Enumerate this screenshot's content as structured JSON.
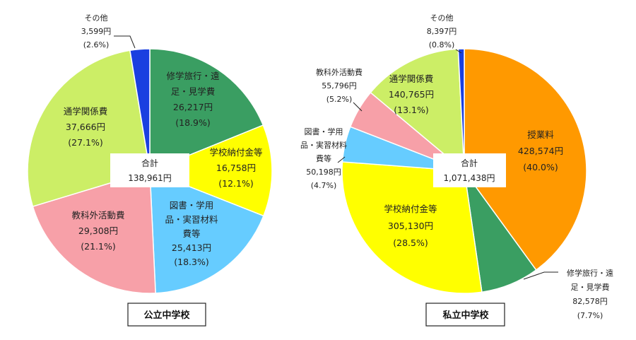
{
  "chart_data": [
    {
      "type": "pie",
      "caption": "公立中学校",
      "total_label": "合計",
      "total_value": "138,961円",
      "slices": [
        {
          "name_lines": [
            "修学旅行・遠",
            "足・見学費"
          ],
          "amount": "26,217円",
          "pct_text": "(18.9%)",
          "value": 18.9,
          "color": "#3a9e62"
        },
        {
          "name_lines": [
            "学校納付金等"
          ],
          "amount": "16,758円",
          "pct_text": "(12.1%)",
          "value": 12.1,
          "color": "#ffff00"
        },
        {
          "name_lines": [
            "図書・学用",
            "品・実習材料",
            "費等"
          ],
          "amount": "25,413円",
          "pct_text": "(18.3%)",
          "value": 18.3,
          "color": "#66ccff"
        },
        {
          "name_lines": [
            "教科外活動費"
          ],
          "amount": "29,308円",
          "pct_text": "(21.1%)",
          "value": 21.1,
          "color": "#f7a0a8"
        },
        {
          "name_lines": [
            "通学関係費"
          ],
          "amount": "37,666円",
          "pct_text": "(27.1%)",
          "value": 27.1,
          "color": "#ccee66"
        },
        {
          "name_lines": [
            "その他"
          ],
          "amount": "3,599円",
          "pct_text": "(2.6%)",
          "value": 2.6,
          "color": "#1a3fe0"
        }
      ]
    },
    {
      "type": "pie",
      "caption": "私立中学校",
      "total_label": "合計",
      "total_value": "1,071,438円",
      "slices": [
        {
          "name_lines": [
            "授業料"
          ],
          "amount": "428,574円",
          "pct_text": "(40.0%)",
          "value": 40.0,
          "color": "#ff9900"
        },
        {
          "name_lines": [
            "修学旅行・遠",
            "足・見学費"
          ],
          "amount": "82,578円",
          "pct_text": "(7.7%)",
          "value": 7.7,
          "color": "#3a9e62"
        },
        {
          "name_lines": [
            "学校納付金等"
          ],
          "amount": "305,130円",
          "pct_text": "(28.5%)",
          "value": 28.5,
          "color": "#ffff00"
        },
        {
          "name_lines": [
            "図書・学用",
            "品・実習材料",
            "費等"
          ],
          "amount": "50,198円",
          "pct_text": "(4.7%)",
          "value": 4.7,
          "color": "#66ccff"
        },
        {
          "name_lines": [
            "教科外活動費"
          ],
          "amount": "55,796円",
          "pct_text": "(5.2%)",
          "value": 5.2,
          "color": "#f7a0a8"
        },
        {
          "name_lines": [
            "通学関係費"
          ],
          "amount": "140,765円",
          "pct_text": "(13.1%)",
          "value": 13.1,
          "color": "#ccee66"
        },
        {
          "name_lines": [
            "その他"
          ],
          "amount": "8,397円",
          "pct_text": "(0.8%)",
          "value": 0.8,
          "color": "#1a3fe0"
        }
      ]
    }
  ]
}
